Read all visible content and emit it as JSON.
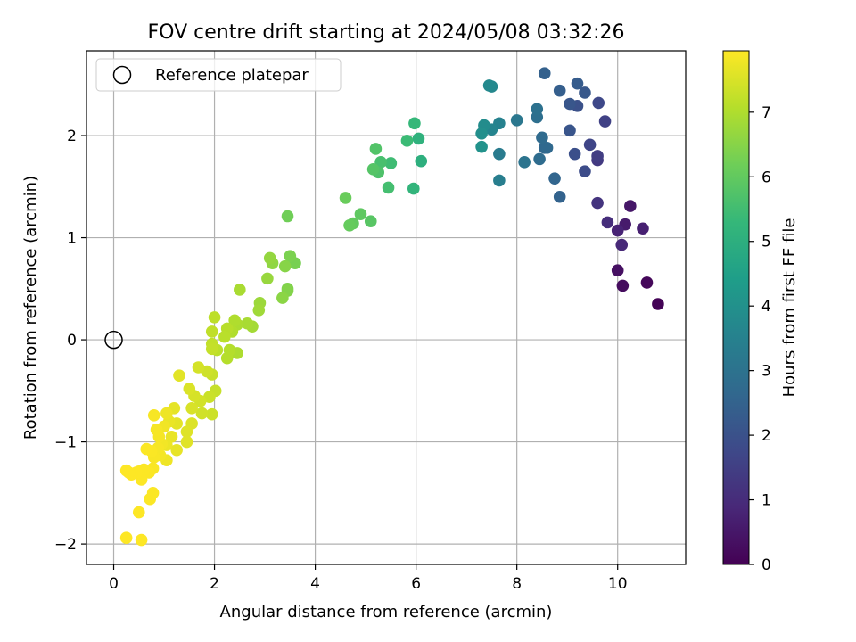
{
  "chart_data": {
    "type": "scatter",
    "title": "FOV centre drift starting at 2024/05/08 03:32:26",
    "xlabel": "Angular distance from reference (arcmin)",
    "ylabel": "Rotation from reference (arcmin)",
    "xlim": [
      -0.54,
      11.35
    ],
    "ylim": [
      -2.2,
      2.83
    ],
    "xticks": [
      0,
      2,
      4,
      6,
      8,
      10
    ],
    "xtick_labels": [
      "0",
      "2",
      "4",
      "6",
      "8",
      "10"
    ],
    "yticks": [
      -2,
      -1,
      0,
      1,
      2
    ],
    "ytick_labels": [
      "−2",
      "−1",
      "0",
      "1",
      "2"
    ],
    "grid": true,
    "legend": {
      "position": "top-left",
      "entries": [
        {
          "label": "Reference platepar",
          "marker": "open-circle"
        }
      ]
    },
    "reference_point": {
      "x": 0,
      "y": 0
    },
    "colorbar": {
      "label": "Hours from first FF file",
      "colormap": "viridis",
      "range": [
        0,
        7.95
      ],
      "ticks": [
        0,
        1,
        2,
        3,
        4,
        5,
        6,
        7
      ],
      "tick_labels": [
        "0",
        "1",
        "2",
        "3",
        "4",
        "5",
        "6",
        "7"
      ]
    },
    "series": [
      {
        "points": [
          {
            "x": 10.8,
            "y": 0.35,
            "c": 0.05
          },
          {
            "x": 10.58,
            "y": 0.56,
            "c": 0.15
          },
          {
            "x": 10.1,
            "y": 0.53,
            "c": 0.25
          },
          {
            "x": 10.0,
            "y": 0.68,
            "c": 0.35
          },
          {
            "x": 10.25,
            "y": 1.31,
            "c": 0.5
          },
          {
            "x": 10.15,
            "y": 1.13,
            "c": 0.6
          },
          {
            "x": 10.5,
            "y": 1.09,
            "c": 0.7
          },
          {
            "x": 10.0,
            "y": 1.07,
            "c": 0.8
          },
          {
            "x": 10.08,
            "y": 0.93,
            "c": 0.9
          },
          {
            "x": 9.8,
            "y": 1.15,
            "c": 1.05
          },
          {
            "x": 9.6,
            "y": 1.34,
            "c": 1.2
          },
          {
            "x": 9.6,
            "y": 1.76,
            "c": 1.35
          },
          {
            "x": 9.6,
            "y": 1.8,
            "c": 1.45
          },
          {
            "x": 9.75,
            "y": 2.14,
            "c": 1.55
          },
          {
            "x": 9.45,
            "y": 1.91,
            "c": 1.65
          },
          {
            "x": 9.62,
            "y": 2.32,
            "c": 1.75
          },
          {
            "x": 9.35,
            "y": 1.65,
            "c": 1.85
          },
          {
            "x": 9.15,
            "y": 1.82,
            "c": 1.95
          },
          {
            "x": 9.2,
            "y": 2.29,
            "c": 2.0
          },
          {
            "x": 9.05,
            "y": 2.05,
            "c": 2.1
          },
          {
            "x": 9.05,
            "y": 2.31,
            "c": 2.15
          },
          {
            "x": 9.35,
            "y": 2.42,
            "c": 2.2
          },
          {
            "x": 9.2,
            "y": 2.51,
            "c": 2.3
          },
          {
            "x": 8.85,
            "y": 2.44,
            "c": 2.4
          },
          {
            "x": 8.55,
            "y": 2.61,
            "c": 2.45
          },
          {
            "x": 8.85,
            "y": 1.4,
            "c": 2.5
          },
          {
            "x": 8.75,
            "y": 1.58,
            "c": 2.6
          },
          {
            "x": 8.55,
            "y": 1.88,
            "c": 2.65
          },
          {
            "x": 8.6,
            "y": 1.88,
            "c": 2.7
          },
          {
            "x": 8.5,
            "y": 1.98,
            "c": 2.75
          },
          {
            "x": 8.45,
            "y": 1.77,
            "c": 2.8
          },
          {
            "x": 8.4,
            "y": 2.18,
            "c": 2.9
          },
          {
            "x": 8.4,
            "y": 2.26,
            "c": 2.95
          },
          {
            "x": 8.15,
            "y": 1.74,
            "c": 3.05
          },
          {
            "x": 8.0,
            "y": 2.15,
            "c": 3.15
          },
          {
            "x": 7.65,
            "y": 1.82,
            "c": 3.3
          },
          {
            "x": 7.65,
            "y": 1.56,
            "c": 3.4
          },
          {
            "x": 7.65,
            "y": 2.12,
            "c": 3.5
          },
          {
            "x": 7.5,
            "y": 2.06,
            "c": 3.6
          },
          {
            "x": 7.5,
            "y": 2.48,
            "c": 3.7
          },
          {
            "x": 7.45,
            "y": 2.49,
            "c": 3.75
          },
          {
            "x": 7.35,
            "y": 2.1,
            "c": 3.85
          },
          {
            "x": 7.3,
            "y": 2.02,
            "c": 3.95
          },
          {
            "x": 7.3,
            "y": 1.89,
            "c": 4.05
          },
          {
            "x": 6.1,
            "y": 1.75,
            "c": 5.0
          },
          {
            "x": 6.05,
            "y": 1.97,
            "c": 5.1
          },
          {
            "x": 5.95,
            "y": 1.48,
            "c": 5.2
          },
          {
            "x": 5.97,
            "y": 2.12,
            "c": 5.3
          },
          {
            "x": 5.82,
            "y": 1.95,
            "c": 5.4
          },
          {
            "x": 5.5,
            "y": 1.73,
            "c": 5.45
          },
          {
            "x": 5.45,
            "y": 1.49,
            "c": 5.55
          },
          {
            "x": 5.3,
            "y": 1.74,
            "c": 5.6
          },
          {
            "x": 5.25,
            "y": 1.64,
            "c": 5.7
          },
          {
            "x": 5.2,
            "y": 1.87,
            "c": 5.75
          },
          {
            "x": 5.15,
            "y": 1.67,
            "c": 5.8
          },
          {
            "x": 5.1,
            "y": 1.16,
            "c": 5.85
          },
          {
            "x": 4.9,
            "y": 1.23,
            "c": 5.95
          },
          {
            "x": 4.75,
            "y": 1.14,
            "c": 6.0
          },
          {
            "x": 4.68,
            "y": 1.12,
            "c": 6.05
          },
          {
            "x": 4.6,
            "y": 1.39,
            "c": 6.1
          },
          {
            "x": 3.45,
            "y": 1.21,
            "c": 6.2
          },
          {
            "x": 3.6,
            "y": 0.75,
            "c": 6.3
          },
          {
            "x": 3.5,
            "y": 0.82,
            "c": 6.35
          },
          {
            "x": 3.45,
            "y": 0.5,
            "c": 6.4
          },
          {
            "x": 3.45,
            "y": 0.48,
            "c": 6.45
          },
          {
            "x": 3.4,
            "y": 0.72,
            "c": 6.5
          },
          {
            "x": 3.35,
            "y": 0.41,
            "c": 6.55
          },
          {
            "x": 3.15,
            "y": 0.75,
            "c": 6.6
          },
          {
            "x": 3.1,
            "y": 0.8,
            "c": 6.65
          },
          {
            "x": 3.05,
            "y": 0.6,
            "c": 6.7
          },
          {
            "x": 2.9,
            "y": 0.36,
            "c": 6.75
          },
          {
            "x": 2.88,
            "y": 0.29,
            "c": 6.8
          },
          {
            "x": 2.75,
            "y": 0.13,
            "c": 6.85
          },
          {
            "x": 2.65,
            "y": 0.16,
            "c": 6.9
          },
          {
            "x": 2.5,
            "y": 0.49,
            "c": 6.92
          },
          {
            "x": 2.45,
            "y": 0.15,
            "c": 6.95
          },
          {
            "x": 2.45,
            "y": -0.13,
            "c": 6.97
          },
          {
            "x": 2.4,
            "y": 0.19,
            "c": 7.0
          },
          {
            "x": 2.35,
            "y": 0.08,
            "c": 7.02
          },
          {
            "x": 2.3,
            "y": -0.1,
            "c": 7.05
          },
          {
            "x": 2.25,
            "y": -0.18,
            "c": 7.07
          },
          {
            "x": 2.25,
            "y": 0.11,
            "c": 7.1
          },
          {
            "x": 2.2,
            "y": 0.03,
            "c": 7.12
          },
          {
            "x": 2.05,
            "y": -0.1,
            "c": 7.15
          },
          {
            "x": 2.0,
            "y": 0.22,
            "c": 7.17
          },
          {
            "x": 1.95,
            "y": 0.08,
            "c": 7.2
          },
          {
            "x": 1.95,
            "y": -0.04,
            "c": 7.22
          },
          {
            "x": 1.95,
            "y": -0.09,
            "c": 7.25
          },
          {
            "x": 2.02,
            "y": -0.5,
            "c": 7.27
          },
          {
            "x": 1.95,
            "y": -0.34,
            "c": 7.3
          },
          {
            "x": 1.9,
            "y": -0.56,
            "c": 7.32
          },
          {
            "x": 1.95,
            "y": -0.73,
            "c": 7.35
          },
          {
            "x": 1.85,
            "y": -0.31,
            "c": 7.37
          },
          {
            "x": 1.75,
            "y": -0.72,
            "c": 7.4
          },
          {
            "x": 1.72,
            "y": -0.6,
            "c": 7.42
          },
          {
            "x": 1.68,
            "y": -0.27,
            "c": 7.45
          },
          {
            "x": 1.6,
            "y": -0.55,
            "c": 7.47
          },
          {
            "x": 1.55,
            "y": -0.67,
            "c": 7.5
          },
          {
            "x": 1.5,
            "y": -0.48,
            "c": 7.52
          },
          {
            "x": 1.55,
            "y": -0.82,
            "c": 7.55
          },
          {
            "x": 1.45,
            "y": -0.9,
            "c": 7.57
          },
          {
            "x": 1.45,
            "y": -1.0,
            "c": 7.6
          },
          {
            "x": 1.3,
            "y": -0.35,
            "c": 7.62
          },
          {
            "x": 1.25,
            "y": -0.82,
            "c": 7.64
          },
          {
            "x": 1.2,
            "y": -0.67,
            "c": 7.66
          },
          {
            "x": 1.25,
            "y": -1.08,
            "c": 7.68
          },
          {
            "x": 1.15,
            "y": -0.95,
            "c": 7.7
          },
          {
            "x": 1.1,
            "y": -0.8,
            "c": 7.72
          },
          {
            "x": 1.05,
            "y": -1.03,
            "c": 7.74
          },
          {
            "x": 1.05,
            "y": -0.72,
            "c": 7.76
          },
          {
            "x": 1.05,
            "y": -1.18,
            "c": 7.78
          },
          {
            "x": 1.0,
            "y": -0.85,
            "c": 7.8
          },
          {
            "x": 0.95,
            "y": -1.02,
            "c": 7.82
          },
          {
            "x": 0.92,
            "y": -1.13,
            "c": 7.84
          },
          {
            "x": 0.9,
            "y": -0.95,
            "c": 7.85
          },
          {
            "x": 0.88,
            "y": -1.06,
            "c": 7.86
          },
          {
            "x": 0.85,
            "y": -0.88,
            "c": 7.87
          },
          {
            "x": 0.8,
            "y": -0.74,
            "c": 7.88
          },
          {
            "x": 0.8,
            "y": -1.15,
            "c": 7.89
          },
          {
            "x": 0.78,
            "y": -1.26,
            "c": 7.9
          },
          {
            "x": 0.75,
            "y": -1.09,
            "c": 7.91
          },
          {
            "x": 0.7,
            "y": -1.3,
            "c": 7.92
          },
          {
            "x": 0.65,
            "y": -1.07,
            "c": 7.92
          },
          {
            "x": 0.78,
            "y": -1.5,
            "c": 7.93
          },
          {
            "x": 0.72,
            "y": -1.56,
            "c": 7.93
          },
          {
            "x": 0.6,
            "y": -1.27,
            "c": 7.94
          },
          {
            "x": 0.55,
            "y": -1.37,
            "c": 7.94
          },
          {
            "x": 0.5,
            "y": -1.29,
            "c": 7.94
          },
          {
            "x": 0.45,
            "y": -1.3,
            "c": 7.95
          },
          {
            "x": 0.35,
            "y": -1.32,
            "c": 7.95
          },
          {
            "x": 0.3,
            "y": -1.3,
            "c": 7.95
          },
          {
            "x": 0.25,
            "y": -1.28,
            "c": 7.95
          },
          {
            "x": 0.5,
            "y": -1.69,
            "c": 7.95
          },
          {
            "x": 0.55,
            "y": -1.96,
            "c": 7.95
          },
          {
            "x": 0.25,
            "y": -1.94,
            "c": 7.95
          }
        ]
      }
    ]
  }
}
